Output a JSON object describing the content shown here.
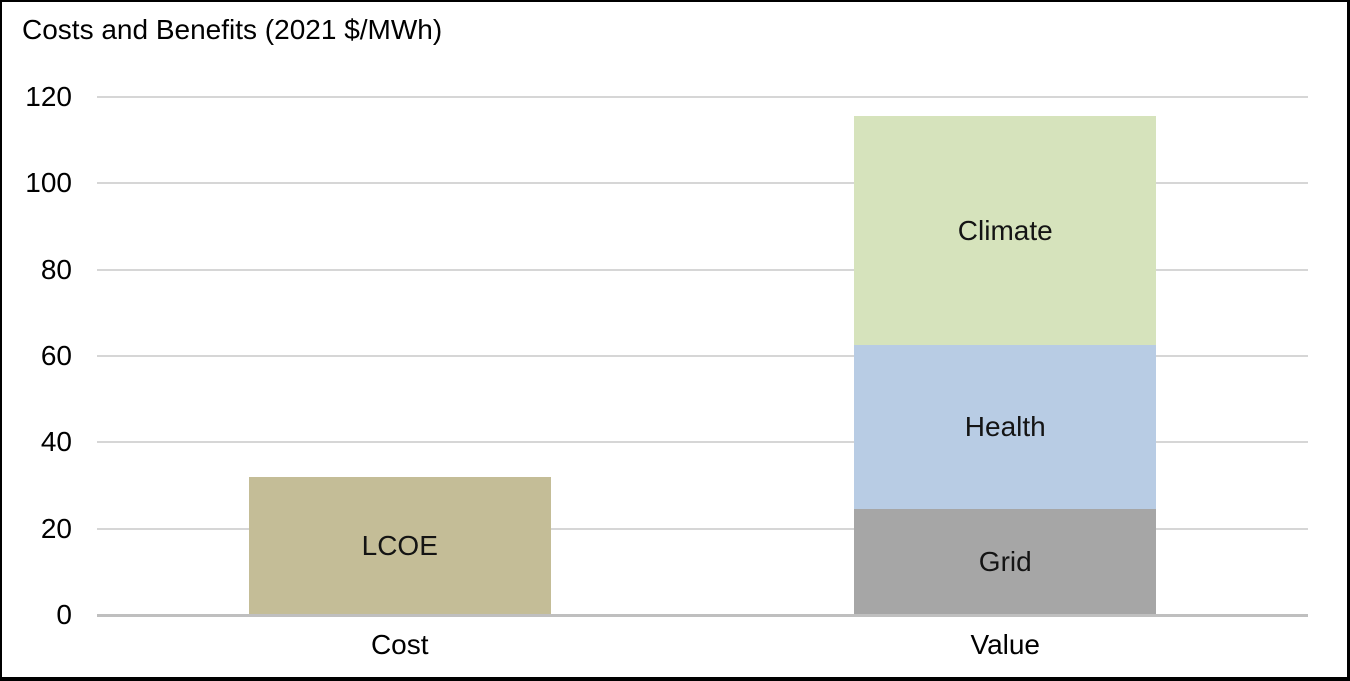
{
  "chart_data": {
    "type": "bar",
    "stacked": true,
    "title": "Costs and Benefits (2021 $/MWh)",
    "categories": [
      "Cost",
      "Value"
    ],
    "bars": [
      {
        "category": "Cost",
        "segments": [
          {
            "label": "LCOE",
            "value": 32,
            "color": "#C4BD97"
          }
        ],
        "total": 32
      },
      {
        "category": "Value",
        "segments": [
          {
            "label": "Grid",
            "value": 24.5,
            "color": "#A6A6A6"
          },
          {
            "label": "Health",
            "value": 38,
            "color": "#B8CCE4"
          },
          {
            "label": "Climate",
            "value": 53,
            "color": "#D6E3BC"
          }
        ],
        "total": 115.5
      }
    ],
    "xlabel": "",
    "ylabel": "",
    "ylim": [
      0,
      120
    ],
    "yticks": [
      0,
      20,
      40,
      60,
      80,
      100,
      120
    ],
    "grid": true,
    "legend_position": "none",
    "annotation_style": "segment labels drawn inside bars"
  },
  "colors": {
    "background": "#ffffff",
    "frame_border": "#000000",
    "gridline": "#d6d6d6",
    "axis_line": "#bfbfbf",
    "text": "#000000"
  }
}
